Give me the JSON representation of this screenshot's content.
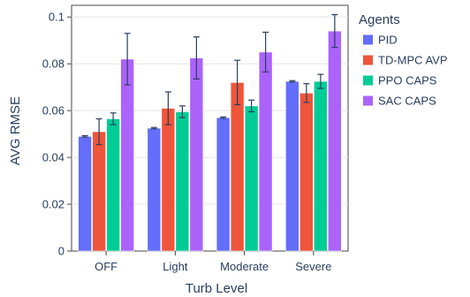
{
  "chart_data": {
    "type": "bar",
    "xlabel": "Turb Level",
    "ylabel": "AVG RMSE",
    "categories": [
      "OFF",
      "Light",
      "Moderate",
      "Severe"
    ],
    "ylim": [
      0,
      0.105
    ],
    "yticks": [
      0,
      0.02,
      0.04,
      0.06,
      0.08,
      0.1
    ],
    "ytick_labels": [
      "0",
      "0.02",
      "0.04",
      "0.06",
      "0.08",
      "0.1"
    ],
    "grid": true,
    "legend": {
      "title": "Agents",
      "position": "right"
    },
    "error_bars": true,
    "series": [
      {
        "name": "PID",
        "color": "#636efa",
        "values": [
          0.049,
          0.0525,
          0.057,
          0.0725
        ],
        "errors": [
          0.0003,
          0.0003,
          0.0003,
          0.0003
        ]
      },
      {
        "name": "TD-MPC AVP",
        "color": "#ef553b",
        "values": [
          0.051,
          0.061,
          0.072,
          0.0675
        ],
        "errors": [
          0.0055,
          0.007,
          0.0095,
          0.004
        ]
      },
      {
        "name": "PPO CAPS",
        "color": "#00cc96",
        "values": [
          0.0565,
          0.0595,
          0.062,
          0.0725
        ],
        "errors": [
          0.0025,
          0.0025,
          0.0025,
          0.003
        ]
      },
      {
        "name": "SAC CAPS",
        "color": "#ab63fa",
        "values": [
          0.082,
          0.0825,
          0.085,
          0.094
        ],
        "errors": [
          0.011,
          0.009,
          0.0085,
          0.007
        ]
      }
    ]
  }
}
